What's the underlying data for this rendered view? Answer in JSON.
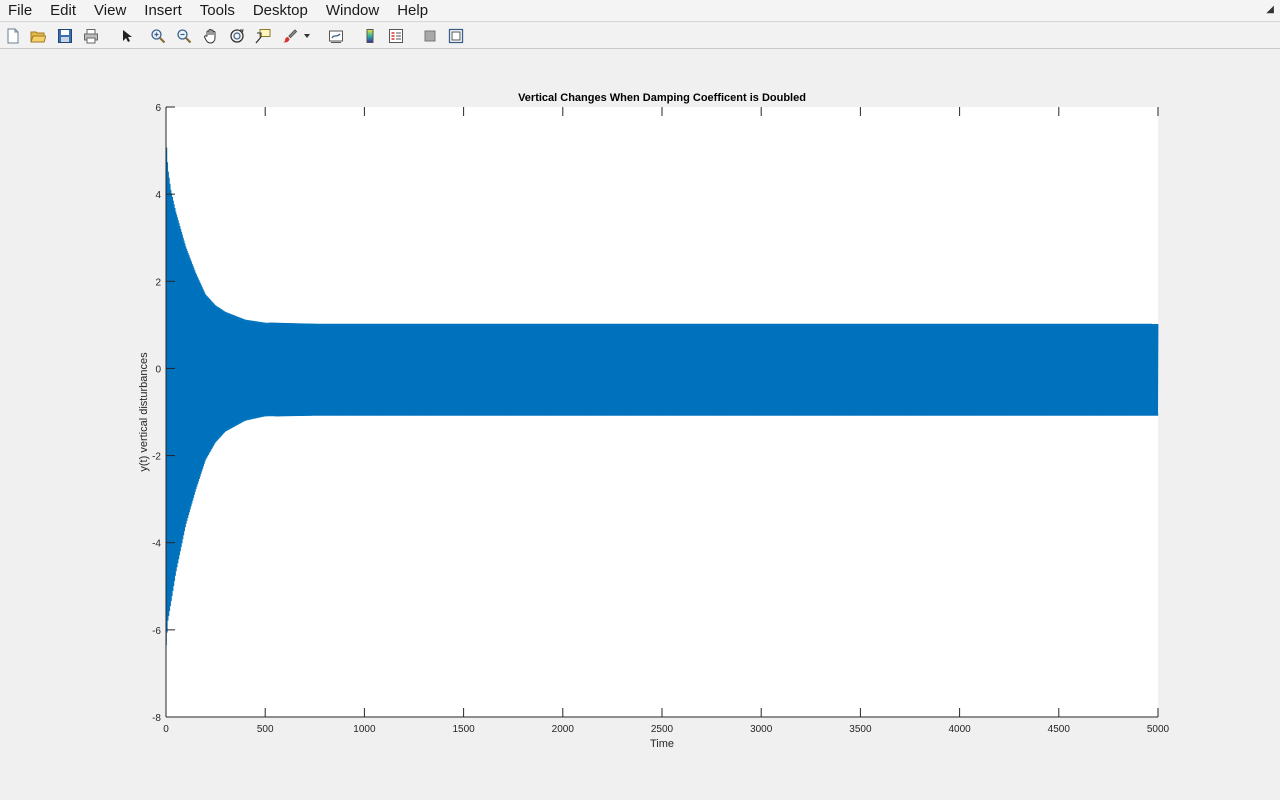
{
  "menu": {
    "items": [
      "File",
      "Edit",
      "View",
      "Insert",
      "Tools",
      "Desktop",
      "Window",
      "Help"
    ]
  },
  "toolbar": {
    "icons": [
      "new-figure-icon",
      "open-file-icon",
      "save-icon",
      "print-icon",
      "pointer-icon",
      "zoom-in-icon",
      "zoom-out-icon",
      "pan-hand-icon",
      "rotate-3d-icon",
      "data-cursor-icon",
      "brush-icon",
      "brush-dropdown-icon",
      "link-plot-icon",
      "colorbar-icon",
      "legend-icon",
      "hide-plot-tools-icon",
      "show-plot-tools-icon"
    ]
  },
  "colors": {
    "series": "#0072bd",
    "axes_bg": "#ffffff",
    "figure_bg": "#f0f0f0"
  },
  "chart_data": {
    "type": "line",
    "title": "Vertical Changes When Damping Coefficent is Doubled",
    "xlabel": "Time",
    "ylabel": "y(t) vertical disturbances",
    "xlim": [
      0,
      5000
    ],
    "ylim": [
      -8,
      6
    ],
    "x_ticks": [
      0,
      500,
      1000,
      1500,
      2000,
      2500,
      3000,
      3500,
      4000,
      4500,
      5000
    ],
    "y_ticks": [
      -8,
      -6,
      -4,
      -2,
      0,
      2,
      4,
      6
    ],
    "grid": false,
    "series": [
      {
        "description_points": {
          "t": [
            0,
            10,
            25,
            50,
            100,
            150,
            200,
            250,
            300,
            400,
            500,
            750,
            1000,
            2000,
            3000,
            4000,
            5000
          ],
          "upper": [
            5.4,
            4.6,
            4.1,
            3.6,
            2.8,
            2.2,
            1.7,
            1.45,
            1.3,
            1.12,
            1.05,
            1.02,
            1.02,
            1.02,
            1.02,
            1.02,
            1.02
          ],
          "lower": [
            -6.5,
            -5.8,
            -5.4,
            -4.7,
            -3.6,
            -2.8,
            -2.1,
            -1.7,
            -1.45,
            -1.2,
            -1.1,
            -1.08,
            -1.08,
            -1.08,
            -1.08,
            -1.08,
            -1.08
          ]
        }
      }
    ]
  }
}
